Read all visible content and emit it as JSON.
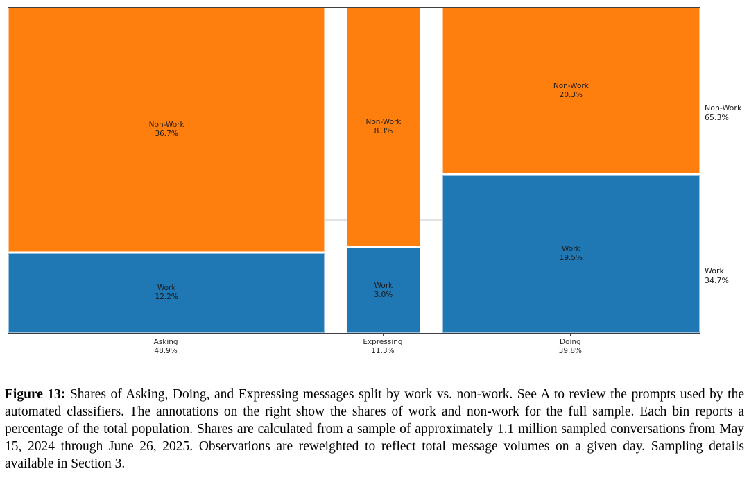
{
  "chart_data": {
    "type": "bar",
    "subtype": "mosaic",
    "title": "",
    "xlabel": "",
    "ylabel": "",
    "legend": "none",
    "grid": "off",
    "categories": [
      "Asking",
      "Expressing",
      "Doing"
    ],
    "category_shares": [
      48.9,
      11.3,
      39.8
    ],
    "series": [
      {
        "name": "Non-Work",
        "values": [
          36.7,
          8.3,
          20.3
        ],
        "color": "#ff7f0e",
        "position": "top"
      },
      {
        "name": "Work",
        "values": [
          12.2,
          3.0,
          19.5
        ],
        "color": "#1f77b4",
        "position": "bottom"
      }
    ],
    "overall": {
      "non_work": 65.3,
      "work": 34.7
    },
    "layout_hints": "column width proportional to category share of total; segment height proportional to within-category share; faint horizontal line across plot at overall work/non-work split (34.7% from bottom)"
  },
  "chart": {
    "columns": [
      {
        "tick_label": "Asking",
        "tick_value": "48.9%",
        "nonwork": {
          "label": "Non-Work",
          "value": "36.7%"
        },
        "work": {
          "label": "Work",
          "value": "12.2%"
        }
      },
      {
        "tick_label": "Expressing",
        "tick_value": "11.3%",
        "nonwork": {
          "label": "Non-Work",
          "value": "8.3%"
        },
        "work": {
          "label": "Work",
          "value": "3.0%"
        }
      },
      {
        "tick_label": "Doing",
        "tick_value": "39.8%",
        "nonwork": {
          "label": "Non-Work",
          "value": "20.3%"
        },
        "work": {
          "label": "Work",
          "value": "19.5%"
        }
      }
    ],
    "right_annotations": [
      {
        "label": "Non-Work",
        "value": "65.3%"
      },
      {
        "label": "Work",
        "value": "34.7%"
      }
    ],
    "colors": {
      "non_work": "#ff7f0e",
      "work": "#1f77b4",
      "spine": "#3f3f3f",
      "reference_line": "#e2e2e2"
    }
  },
  "caption": {
    "label": "Figure 13:",
    "text": "Shares of Asking, Doing, and Expressing messages split by work vs. non-work. See A to review the prompts used by the automated classifiers. The annotations on the right show the shares of work and non-work for the full sample. Each bin reports a percentage of the total population. Shares are calculated from a sample of approximately 1.1 million sampled conversations from May 15, 2024 through June 26, 2025. Observations are reweighted to reflect total message volumes on a given day. Sampling details available in Section 3."
  }
}
